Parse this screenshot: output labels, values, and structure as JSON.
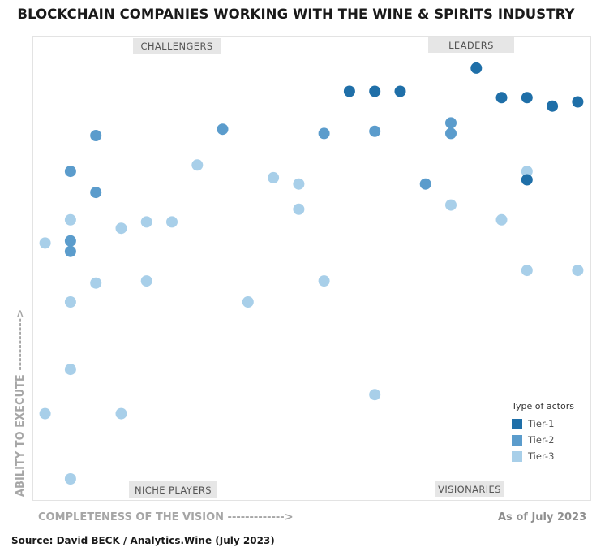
{
  "title": "BLOCKCHAIN COMPANIES WORKING WITH THE WINE & SPIRITS INDUSTRY",
  "quadrants": {
    "top_left": "CHALLENGERS",
    "top_right": "LEADERS",
    "bottom_left": "NICHE PLAYERS",
    "bottom_right": "VISIONARIES"
  },
  "as_of": "As of July 2023",
  "source": "Source: David BECK / Analytics.Wine (July 2023)",
  "colors": {
    "tier1": "#1f6fa8",
    "tier2": "#5b9ccc",
    "tier3": "#a8cfe9",
    "quad_label_bg": "#e6e6e6",
    "border": "#e3e3e3"
  },
  "chart_data": {
    "type": "scatter",
    "title": "BLOCKCHAIN COMPANIES WORKING WITH THE WINE & SPIRITS INDUSTRY",
    "xlabel": "COMPLETENESS OF THE VISION ------------->",
    "ylabel": "ABILITY TO EXECUTE ------------>",
    "xlim": [
      0,
      22
    ],
    "ylim": [
      0,
      22
    ],
    "grid": false,
    "legend_title": "Type of actors",
    "legend_position": "bottom-right",
    "series": [
      {
        "name": "Tier-1",
        "points": [
          [
            12.5,
            19.4
          ],
          [
            13.5,
            19.4
          ],
          [
            14.5,
            19.4
          ],
          [
            17.5,
            20.5
          ],
          [
            18.5,
            19.1
          ],
          [
            19.5,
            19.1
          ],
          [
            20.5,
            18.7
          ],
          [
            21.5,
            18.9
          ],
          [
            19.5,
            15.2
          ]
        ]
      },
      {
        "name": "Tier-2",
        "points": [
          [
            1.5,
            15.6
          ],
          [
            2.5,
            17.3
          ],
          [
            2.5,
            14.6
          ],
          [
            1.5,
            12.3
          ],
          [
            1.5,
            11.8
          ],
          [
            7.5,
            17.6
          ],
          [
            11.5,
            17.4
          ],
          [
            13.5,
            17.5
          ],
          [
            16.5,
            17.9
          ],
          [
            16.5,
            17.4
          ],
          [
            15.5,
            15.0
          ]
        ]
      },
      {
        "name": "Tier-3",
        "points": [
          [
            6.5,
            15.9
          ],
          [
            0.5,
            12.2
          ],
          [
            1.5,
            13.3
          ],
          [
            3.5,
            12.9
          ],
          [
            4.5,
            13.2
          ],
          [
            5.5,
            13.2
          ],
          [
            9.5,
            15.3
          ],
          [
            10.5,
            15.0
          ],
          [
            10.5,
            13.8
          ],
          [
            2.5,
            10.3
          ],
          [
            4.5,
            10.4
          ],
          [
            1.5,
            9.4
          ],
          [
            8.5,
            9.4
          ],
          [
            11.5,
            10.4
          ],
          [
            16.5,
            14.0
          ],
          [
            18.5,
            13.3
          ],
          [
            19.5,
            15.6
          ],
          [
            19.5,
            10.9
          ],
          [
            21.5,
            10.9
          ],
          [
            1.5,
            6.2
          ],
          [
            0.5,
            4.1
          ],
          [
            3.5,
            4.1
          ],
          [
            13.5,
            5.0
          ],
          [
            1.5,
            1.0
          ]
        ]
      }
    ]
  }
}
